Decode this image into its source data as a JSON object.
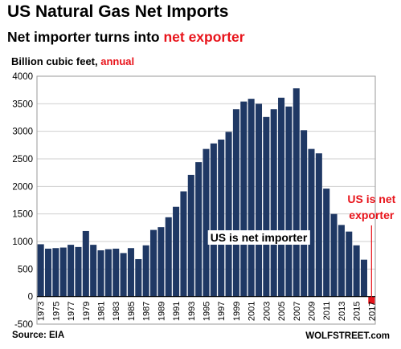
{
  "header": {
    "title": "US Natural Gas Net Imports",
    "subtitle_prefix": "Net importer turns into ",
    "subtitle_highlight": "net exporter",
    "units_prefix": "Billion cubic feet, ",
    "units_highlight": "annual"
  },
  "footer": {
    "source": "Source: EIA",
    "brand": "WOLFSTREET.com"
  },
  "colors": {
    "bar": "#1f3864",
    "bar_export": "#e8141b",
    "highlight": "#e8141b",
    "grid": "#cfcfcf"
  },
  "chart_data": {
    "type": "bar",
    "title": "US Natural Gas Net Imports",
    "ylabel": "Billion cubic feet, annual",
    "ylim": [
      -500,
      4000
    ],
    "yticks": [
      -500,
      0,
      500,
      1000,
      1500,
      2000,
      2500,
      3000,
      3500,
      4000
    ],
    "grid": true,
    "categories": [
      "1973",
      "1974",
      "1975",
      "1976",
      "1977",
      "1978",
      "1979",
      "1980",
      "1981",
      "1982",
      "1983",
      "1984",
      "1985",
      "1986",
      "1987",
      "1988",
      "1989",
      "1990",
      "1991",
      "1992",
      "1993",
      "1994",
      "1995",
      "1996",
      "1997",
      "1998",
      "1999",
      "2000",
      "2001",
      "2002",
      "2003",
      "2004",
      "2005",
      "2006",
      "2007",
      "2008",
      "2009",
      "2010",
      "2011",
      "2012",
      "2013",
      "2014",
      "2015",
      "2016",
      "2017"
    ],
    "xtick_labels": [
      "1973",
      "1975",
      "1977",
      "1979",
      "1981",
      "1983",
      "1985",
      "1987",
      "1989",
      "1991",
      "1993",
      "1995",
      "1997",
      "1999",
      "2001",
      "2003",
      "2005",
      "2007",
      "2009",
      "2011",
      "2013",
      "2015",
      "2017"
    ],
    "values": [
      950,
      870,
      880,
      890,
      940,
      900,
      1190,
      940,
      840,
      860,
      870,
      790,
      880,
      680,
      930,
      1210,
      1260,
      1440,
      1630,
      1910,
      2210,
      2440,
      2680,
      2780,
      2850,
      2990,
      3400,
      3540,
      3590,
      3500,
      3260,
      3400,
      3610,
      3450,
      3780,
      3020,
      2680,
      2600,
      1960,
      1500,
      1300,
      1180,
      930,
      670,
      -130
    ],
    "annotations": [
      {
        "text": "US is net importer",
        "at": "2002",
        "y": 1000
      },
      {
        "text_line1": "US is net",
        "text_line2": "exporter",
        "at": "2017",
        "y": 1700
      }
    ]
  }
}
